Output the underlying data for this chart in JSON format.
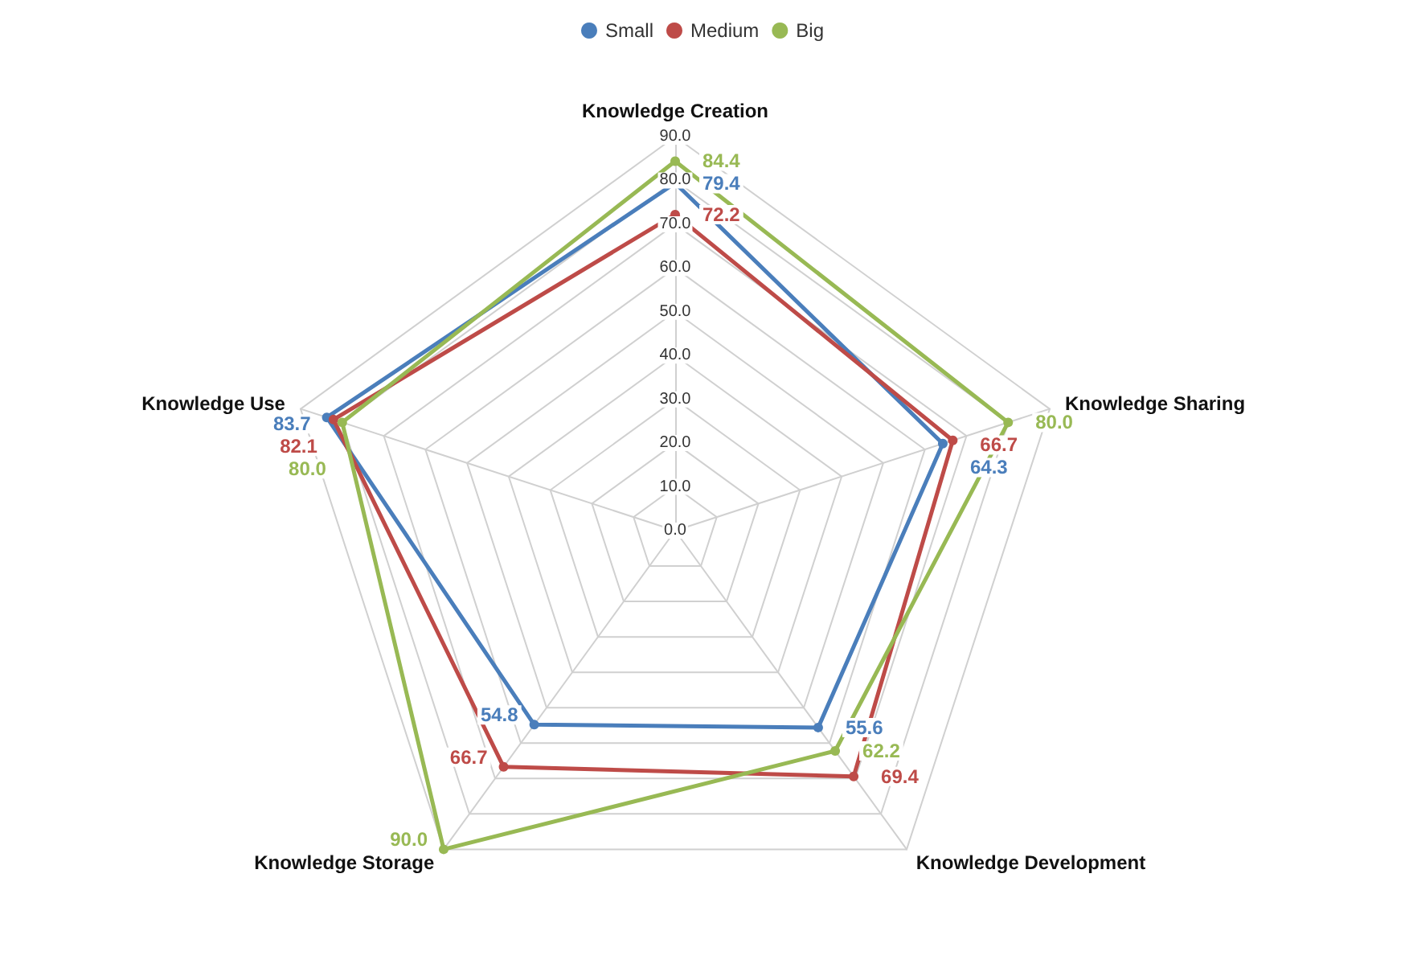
{
  "chart_data": {
    "type": "radar",
    "categories": [
      "Knowledge Creation",
      "Knowledge Sharing",
      "Knowledge Development",
      "Knowledge Storage",
      "Knowledge Use"
    ],
    "series": [
      {
        "name": "Small",
        "color": "#4a7ebb",
        "values": [
          79.4,
          64.3,
          55.6,
          54.8,
          83.7
        ],
        "value_labels": [
          "79.4",
          "64.3",
          "55.6",
          "54.8",
          "83.7"
        ]
      },
      {
        "name": "Medium",
        "color": "#be4b48",
        "values": [
          72.2,
          66.7,
          69.4,
          66.7,
          82.1
        ],
        "value_labels": [
          "72.2",
          "66.7",
          "69.4",
          "66.7",
          "82.1"
        ]
      },
      {
        "name": "Big",
        "color": "#98b954",
        "values": [
          84.4,
          80.0,
          62.2,
          90.0,
          80.0
        ],
        "value_labels": [
          "84.4",
          "80.0",
          "62.2",
          "90.0",
          "80.0"
        ]
      }
    ],
    "ylim": [
      0,
      90
    ],
    "yticks": [
      {
        "value": 0,
        "label": "0.0"
      },
      {
        "value": 10,
        "label": "10.0"
      },
      {
        "value": 20,
        "label": "20.0"
      },
      {
        "value": 30,
        "label": "30.0"
      },
      {
        "value": 40,
        "label": "40.0"
      },
      {
        "value": 50,
        "label": "50.0"
      },
      {
        "value": 60,
        "label": "60.0"
      },
      {
        "value": 70,
        "label": "70.0"
      },
      {
        "value": 80,
        "label": "80.0"
      },
      {
        "value": 90,
        "label": "90.0"
      }
    ],
    "grid": true,
    "legend": "top",
    "marker": "circle",
    "line_style": "solid"
  }
}
